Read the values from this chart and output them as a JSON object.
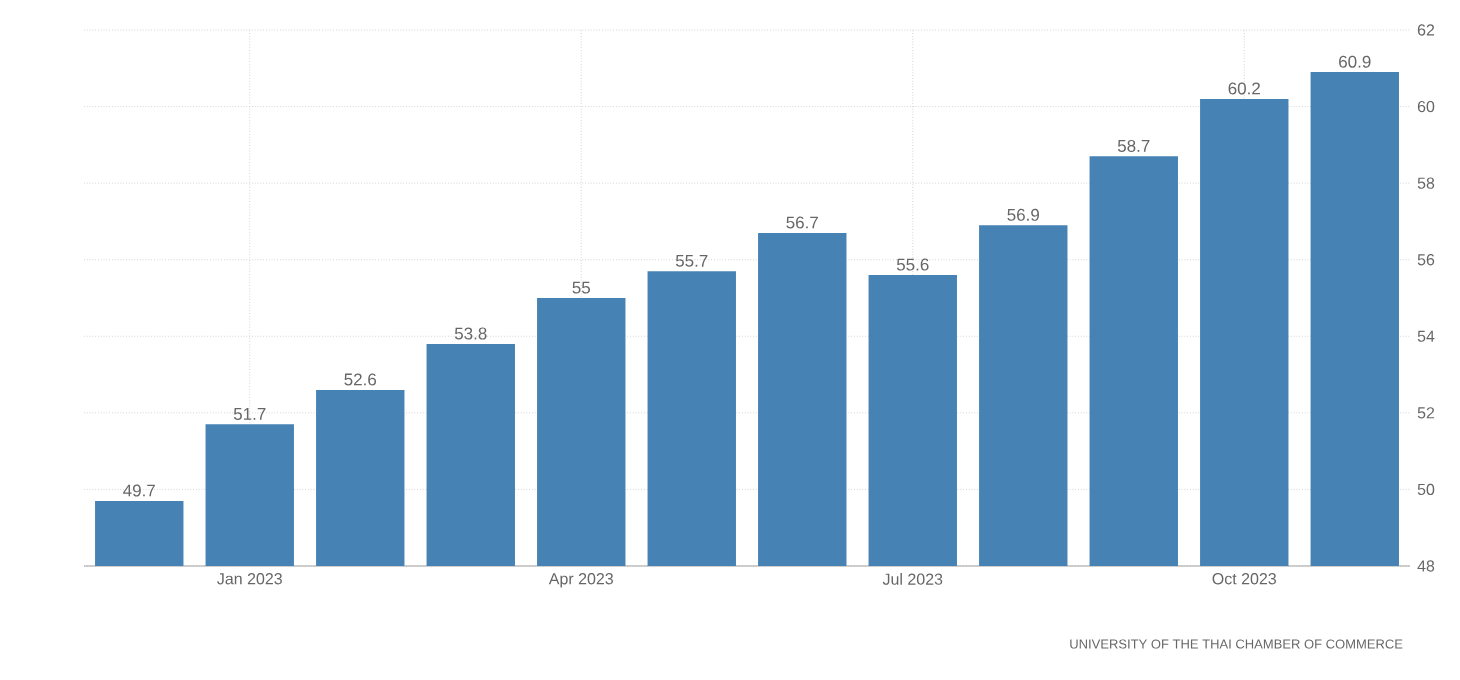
{
  "chart_data": {
    "type": "bar",
    "categories": [
      null,
      "Jan 2023",
      null,
      null,
      "Apr 2023",
      null,
      null,
      "Jul 2023",
      null,
      null,
      "Oct 2023",
      null
    ],
    "values": [
      49.7,
      51.7,
      52.6,
      53.8,
      55,
      55.7,
      56.7,
      55.6,
      56.9,
      58.7,
      60.2,
      60.9
    ],
    "color": "#4682b4",
    "ylim": [
      48,
      62
    ],
    "yticks": [
      48,
      50,
      52,
      54,
      56,
      58,
      60,
      62
    ],
    "grid": true,
    "data_labels": true,
    "annotations": [
      "UNIVERSITY OF THE THAI CHAMBER OF COMMERCE"
    ]
  }
}
